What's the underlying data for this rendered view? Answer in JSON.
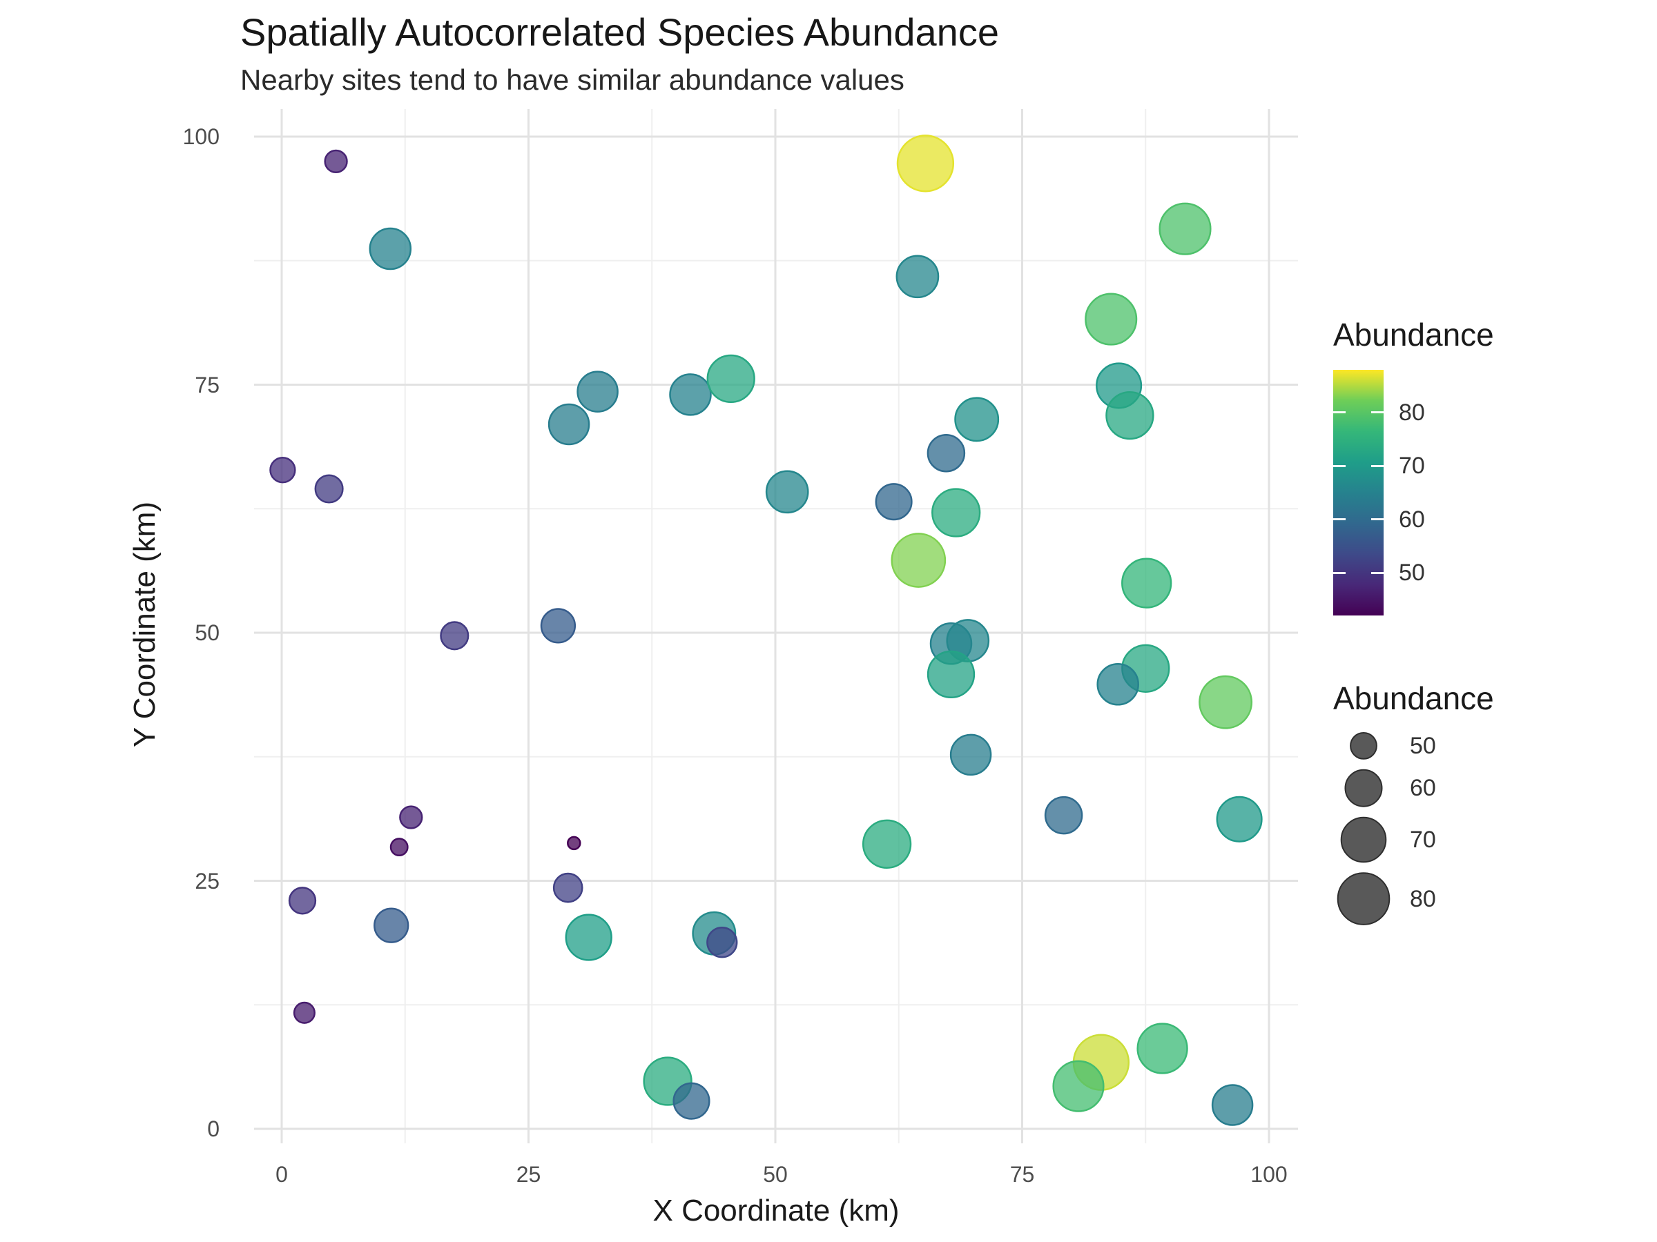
{
  "chart_data": {
    "type": "scatter",
    "title": "Spatially Autocorrelated Species Abundance",
    "subtitle": "Nearby sites tend to have similar abundance values",
    "xlabel": "X Coordinate (km)",
    "ylabel": "Y Coordinate (km)",
    "xlim": [
      -2.8,
      103
    ],
    "ylim": [
      -1.5,
      102.8
    ],
    "x_ticks": [
      0,
      25,
      50,
      75,
      100
    ],
    "y_ticks": [
      0,
      25,
      50,
      75,
      100
    ],
    "x_minor_ticks": [
      12.5,
      37.5,
      62.5,
      87.5
    ],
    "y_minor_ticks": [
      12.5,
      37.5,
      62.5,
      87.5
    ],
    "grid": true,
    "legend_position": "right",
    "point_fill_alpha": 0.75,
    "grid_major_color": "#e2e2e2",
    "grid_minor_color": "#efefef",
    "color_scale": {
      "name": "viridis",
      "domain": [
        42,
        88
      ],
      "stops": [
        {
          "t": 0.0,
          "c": "#440154"
        },
        {
          "t": 0.125,
          "c": "#482878"
        },
        {
          "t": 0.25,
          "c": "#3e4a89"
        },
        {
          "t": 0.375,
          "c": "#31688e"
        },
        {
          "t": 0.5,
          "c": "#26828e"
        },
        {
          "t": 0.625,
          "c": "#1f9e89"
        },
        {
          "t": 0.75,
          "c": "#35b779"
        },
        {
          "t": 0.875,
          "c": "#6ece58"
        },
        {
          "t": 1.0,
          "c": "#fde725"
        }
      ]
    },
    "color_legend": {
      "title": "Abundance",
      "ticks": [
        80,
        70,
        60,
        50
      ]
    },
    "size_legend": {
      "title": "Abundance",
      "values": [
        50,
        60,
        70,
        80
      ],
      "swatch_color": "#595959",
      "swatch_stroke": "#2e2e2e"
    },
    "points": [
      {
        "x": 5.5,
        "y": 97.5,
        "abundance": 47
      },
      {
        "x": 11.0,
        "y": 88.7,
        "abundance": 65
      },
      {
        "x": 65.2,
        "y": 97.3,
        "abundance": 87
      },
      {
        "x": 91.5,
        "y": 90.7,
        "abundance": 79
      },
      {
        "x": 64.4,
        "y": 85.9,
        "abundance": 66
      },
      {
        "x": 84.0,
        "y": 81.6,
        "abundance": 79
      },
      {
        "x": 29.1,
        "y": 71.0,
        "abundance": 64
      },
      {
        "x": 32.0,
        "y": 74.3,
        "abundance": 64
      },
      {
        "x": 41.4,
        "y": 74.0,
        "abundance": 65
      },
      {
        "x": 45.5,
        "y": 75.6,
        "abundance": 73
      },
      {
        "x": 84.8,
        "y": 74.9,
        "abundance": 70
      },
      {
        "x": 85.9,
        "y": 71.9,
        "abundance": 73
      },
      {
        "x": 70.4,
        "y": 71.5,
        "abundance": 68
      },
      {
        "x": 67.3,
        "y": 68.1,
        "abundance": 60
      },
      {
        "x": 0.1,
        "y": 66.4,
        "abundance": 49
      },
      {
        "x": 4.8,
        "y": 64.5,
        "abundance": 51
      },
      {
        "x": 51.2,
        "y": 64.2,
        "abundance": 66
      },
      {
        "x": 62.0,
        "y": 63.2,
        "abundance": 59
      },
      {
        "x": 68.3,
        "y": 62.1,
        "abundance": 74
      },
      {
        "x": 64.5,
        "y": 57.3,
        "abundance": 83
      },
      {
        "x": 87.6,
        "y": 55.0,
        "abundance": 76
      },
      {
        "x": 17.5,
        "y": 49.7,
        "abundance": 51
      },
      {
        "x": 28.0,
        "y": 50.7,
        "abundance": 57
      },
      {
        "x": 67.8,
        "y": 48.9,
        "abundance": 65
      },
      {
        "x": 69.5,
        "y": 49.2,
        "abundance": 66
      },
      {
        "x": 67.8,
        "y": 45.8,
        "abundance": 72
      },
      {
        "x": 87.5,
        "y": 46.4,
        "abundance": 73
      },
      {
        "x": 84.7,
        "y": 44.8,
        "abundance": 65
      },
      {
        "x": 95.6,
        "y": 43.0,
        "abundance": 81
      },
      {
        "x": 69.8,
        "y": 37.7,
        "abundance": 64
      },
      {
        "x": 79.2,
        "y": 31.6,
        "abundance": 60
      },
      {
        "x": 97.0,
        "y": 31.2,
        "abundance": 70
      },
      {
        "x": 61.3,
        "y": 28.7,
        "abundance": 74
      },
      {
        "x": 13.1,
        "y": 31.4,
        "abundance": 47
      },
      {
        "x": 11.9,
        "y": 28.4,
        "abundance": 44
      },
      {
        "x": 29.6,
        "y": 28.8,
        "abundance": 42
      },
      {
        "x": 29.0,
        "y": 24.3,
        "abundance": 52
      },
      {
        "x": 2.1,
        "y": 23.0,
        "abundance": 50
      },
      {
        "x": 11.1,
        "y": 20.5,
        "abundance": 57
      },
      {
        "x": 31.1,
        "y": 19.3,
        "abundance": 71
      },
      {
        "x": 43.8,
        "y": 19.7,
        "abundance": 67
      },
      {
        "x": 44.6,
        "y": 18.8,
        "abundance": 53
      },
      {
        "x": 2.3,
        "y": 11.7,
        "abundance": 46
      },
      {
        "x": 39.1,
        "y": 4.8,
        "abundance": 74
      },
      {
        "x": 41.5,
        "y": 2.8,
        "abundance": 59
      },
      {
        "x": 83.0,
        "y": 6.7,
        "abundance": 86
      },
      {
        "x": 80.7,
        "y": 4.3,
        "abundance": 78
      },
      {
        "x": 89.2,
        "y": 8.1,
        "abundance": 77
      },
      {
        "x": 96.3,
        "y": 2.4,
        "abundance": 64
      }
    ]
  }
}
